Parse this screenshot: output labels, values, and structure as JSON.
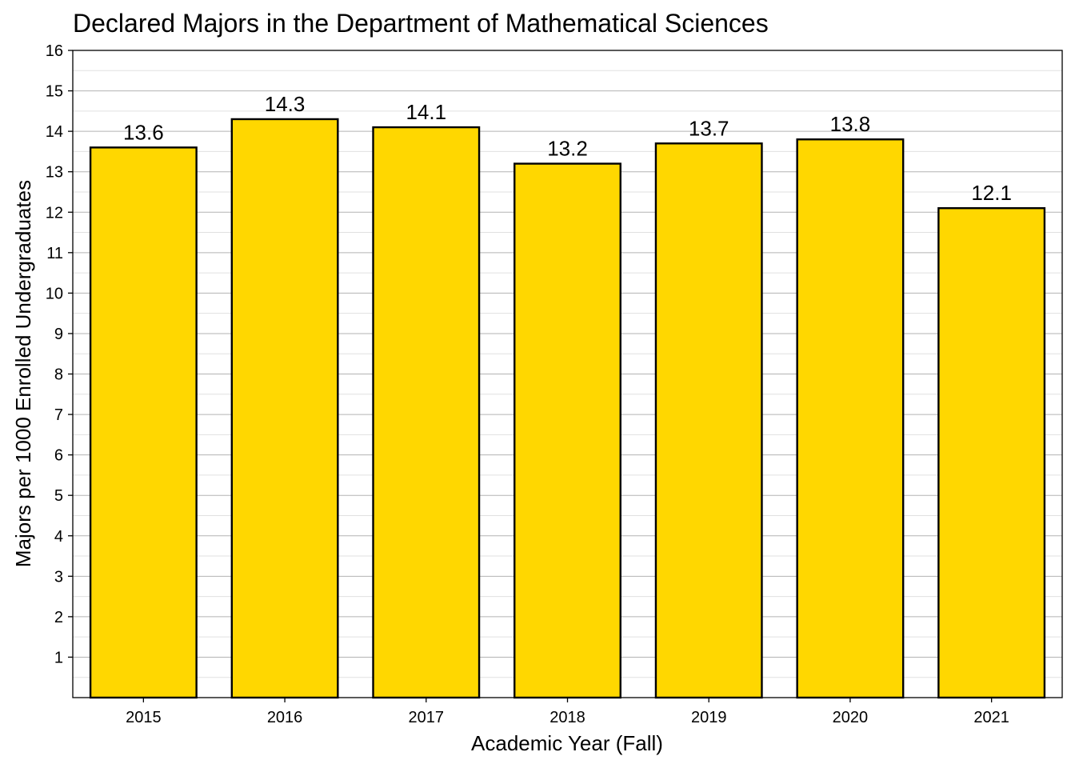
{
  "chart_data": {
    "type": "bar",
    "title": "Declared Majors in the Department of Mathematical Sciences",
    "xlabel": "Academic Year (Fall)",
    "ylabel": "Majors per 1000 Enrolled Undergraduates",
    "categories": [
      "2015",
      "2016",
      "2017",
      "2018",
      "2019",
      "2020",
      "2021"
    ],
    "values": [
      13.6,
      14.3,
      14.1,
      13.2,
      13.7,
      13.8,
      12.1
    ],
    "data_labels": [
      "13.6",
      "14.3",
      "14.1",
      "13.2",
      "13.7",
      "13.8",
      "12.1"
    ],
    "y_ticks": [
      1,
      2,
      3,
      4,
      5,
      6,
      7,
      8,
      9,
      10,
      11,
      12,
      13,
      14,
      15,
      16
    ],
    "ylim": [
      0,
      16
    ],
    "grid": true,
    "legend": "none",
    "colors": {
      "bar_fill": "#FFD700",
      "bar_outline": "#000000"
    }
  }
}
